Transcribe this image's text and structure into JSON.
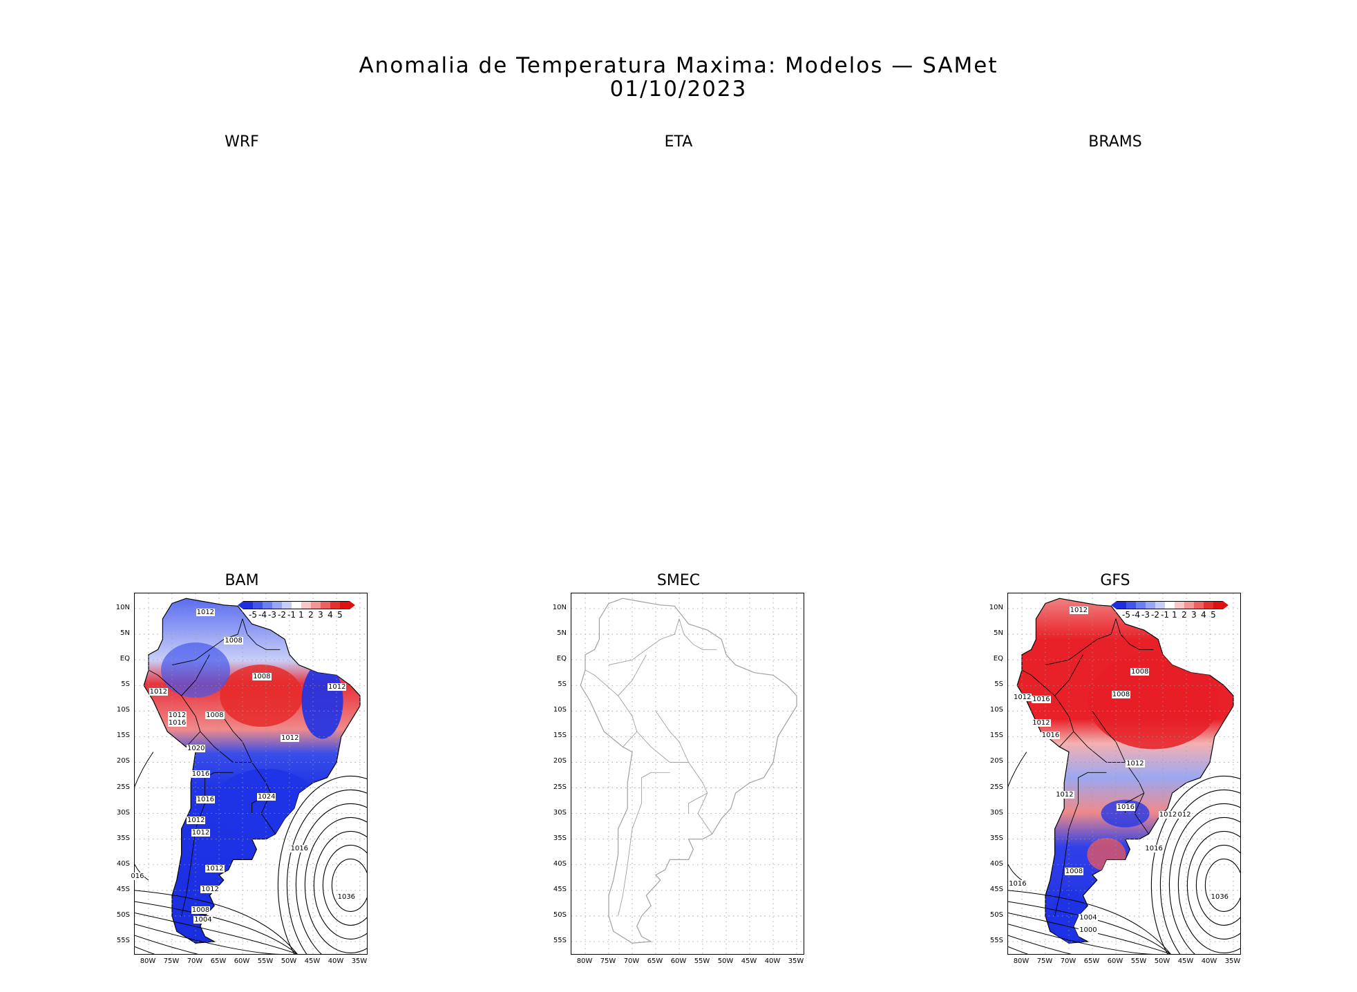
{
  "title": "Anomalia de Temperatura Maxima: Modelos — SAMet",
  "date": "01/10/2023",
  "panels": {
    "wrf": {
      "label": "WRF"
    },
    "eta": {
      "label": "ETA"
    },
    "brams": {
      "label": "BRAMS"
    },
    "bam": {
      "label": "BAM"
    },
    "smec": {
      "label": "SMEC"
    },
    "gfs": {
      "label": "GFS"
    }
  },
  "latitude_labels": [
    "10N",
    "5N",
    "EQ",
    "5S",
    "10S",
    "15S",
    "20S",
    "25S",
    "30S",
    "35S",
    "40S",
    "45S",
    "50S",
    "55S"
  ],
  "longitude_labels": [
    "80W",
    "75W",
    "70W",
    "65W",
    "60W",
    "55W",
    "50W",
    "45W",
    "40W",
    "35W"
  ],
  "colorbar": {
    "ticks": [
      "-5",
      "-4",
      "-3",
      "-2",
      "-1",
      "1",
      "2",
      "3",
      "4",
      "5"
    ],
    "colors": [
      "#1f2fe0",
      "#3f55ec",
      "#6a7ff2",
      "#97a6f5",
      "#c5cdf8",
      "#ffffff",
      "#f8c7c7",
      "#f29696",
      "#ec6262",
      "#e63030",
      "#e01010"
    ]
  },
  "bam_contour_labels": [
    "1012",
    "1008",
    "1008",
    "1012",
    "1012",
    "1012",
    "1008",
    "1012",
    "1016",
    "1020",
    "1016",
    "1016",
    "1012",
    "1012",
    "1024",
    "1016",
    "016",
    "1012",
    "1012",
    "1008",
    "1004",
    "1036"
  ],
  "gfs_contour_labels": [
    "1012",
    "1008",
    "1008",
    "1012",
    "1016",
    "1012",
    "1016",
    "1012",
    "1012",
    "1012",
    "1016",
    "1012",
    "1016",
    "1008",
    "1016",
    "1004",
    "1000",
    "1036"
  ],
  "map_colors": {
    "land_border": "#000000",
    "smec_border": "#a0a0a0",
    "grid": "#9a9a9a",
    "warm": "#e8202a",
    "cold": "#1e32e6"
  }
}
